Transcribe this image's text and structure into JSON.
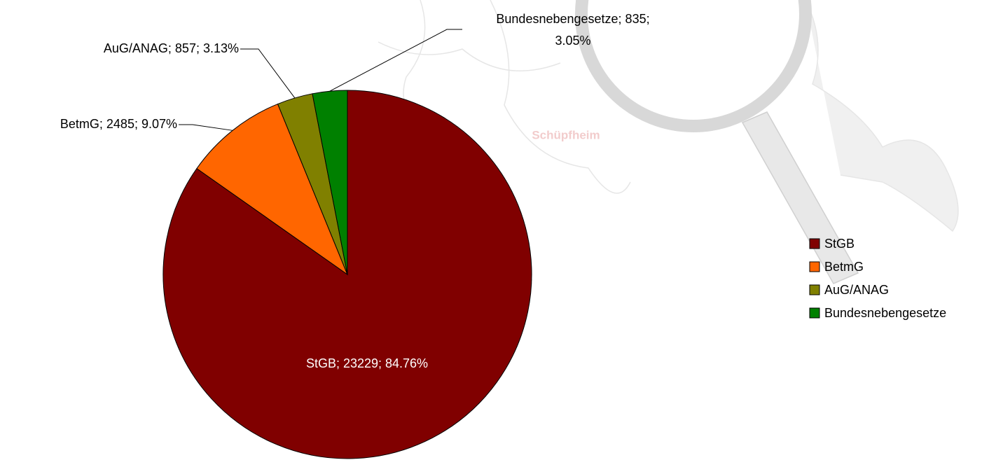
{
  "chart_data": {
    "type": "pie",
    "categories": [
      "StGB",
      "BetmG",
      "AuG/ANAG",
      "Bundesnebengesetze"
    ],
    "values": [
      23229,
      2485,
      857,
      835
    ],
    "value_labels": [
      "StGB; 23229; 84.76%",
      "BetmG; 2485; 9.07%",
      "AuG/ANAG; 857; 3.13%",
      "Bundesnebengesetze; 835; 3.05%"
    ],
    "colors": [
      "#800000",
      "#ff6600",
      "#808000",
      "#008000"
    ],
    "legend": "right"
  },
  "background_labels": [
    "Schüpfheim"
  ]
}
